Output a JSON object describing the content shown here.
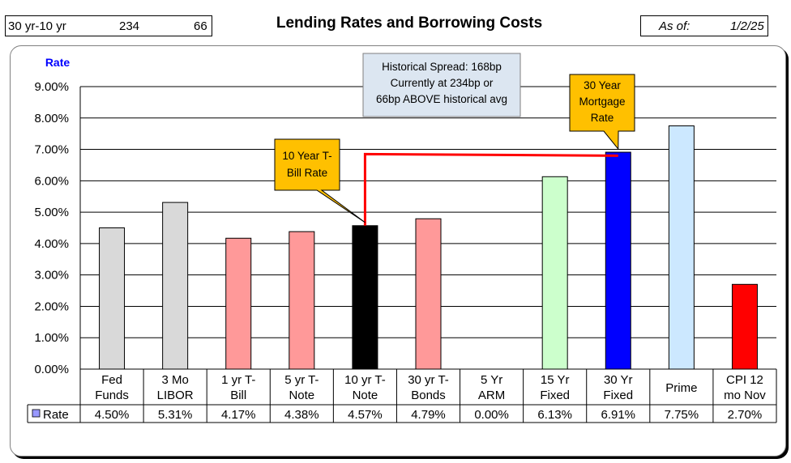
{
  "header": {
    "spread_label": "30 yr-10 yr",
    "spread_current_bp": "234",
    "spread_vs_avg_bp": "66",
    "title": "Lending Rates and Borrowing Costs",
    "asof_label": "As of:",
    "asof_date": "1/2/25"
  },
  "annotations": {
    "historical_spread": [
      "Historical Spread: 168bp",
      "Currently at 234bp  or",
      "66bp ABOVE historical avg"
    ],
    "ten_year_callout": [
      "10 Year T-",
      "Bill Rate"
    ],
    "thirty_year_callout": [
      "30 Year",
      "Mortgage",
      "Rate"
    ]
  },
  "chart_data": {
    "type": "bar",
    "ylabel": "Rate",
    "ylim": [
      0,
      9
    ],
    "yticks": [
      "0.00%",
      "1.00%",
      "2.00%",
      "3.00%",
      "4.00%",
      "5.00%",
      "6.00%",
      "7.00%",
      "8.00%",
      "9.00%"
    ],
    "grid": true,
    "categories": [
      [
        "Fed",
        "Funds"
      ],
      [
        "3 Mo",
        "LIBOR"
      ],
      [
        "1 yr  T-",
        "Bill"
      ],
      [
        "5 yr T-",
        "Note"
      ],
      [
        "10 yr T-",
        "Note"
      ],
      [
        "30 yr T-",
        "Bonds"
      ],
      [
        "5 Yr",
        "ARM"
      ],
      [
        "15 Yr",
        "Fixed"
      ],
      [
        "30 Yr",
        "Fixed"
      ],
      [
        "Prime"
      ],
      [
        "CPI 12",
        "mo Nov"
      ]
    ],
    "series": [
      {
        "name": "Rate",
        "values": [
          4.5,
          5.31,
          4.17,
          4.38,
          4.57,
          4.79,
          0.0,
          6.13,
          6.91,
          7.75,
          2.7
        ],
        "value_labels": [
          "4.50%",
          "5.31%",
          "4.17%",
          "4.38%",
          "4.57%",
          "4.79%",
          "0.00%",
          "6.13%",
          "6.91%",
          "7.75%",
          "2.70%"
        ],
        "colors": [
          "#d9d9d9",
          "#d9d9d9",
          "#ff9999",
          "#ff9999",
          "#000000",
          "#ff9999",
          "#ffffff",
          "#ccffcc",
          "#0000ff",
          "#cce8ff",
          "#ff0000"
        ]
      }
    ],
    "legend_marker_color": "#9999ff",
    "spread_line_color": "#ff0000",
    "callout_fill": "#ffc000",
    "note_fill": "#dce6f1"
  }
}
